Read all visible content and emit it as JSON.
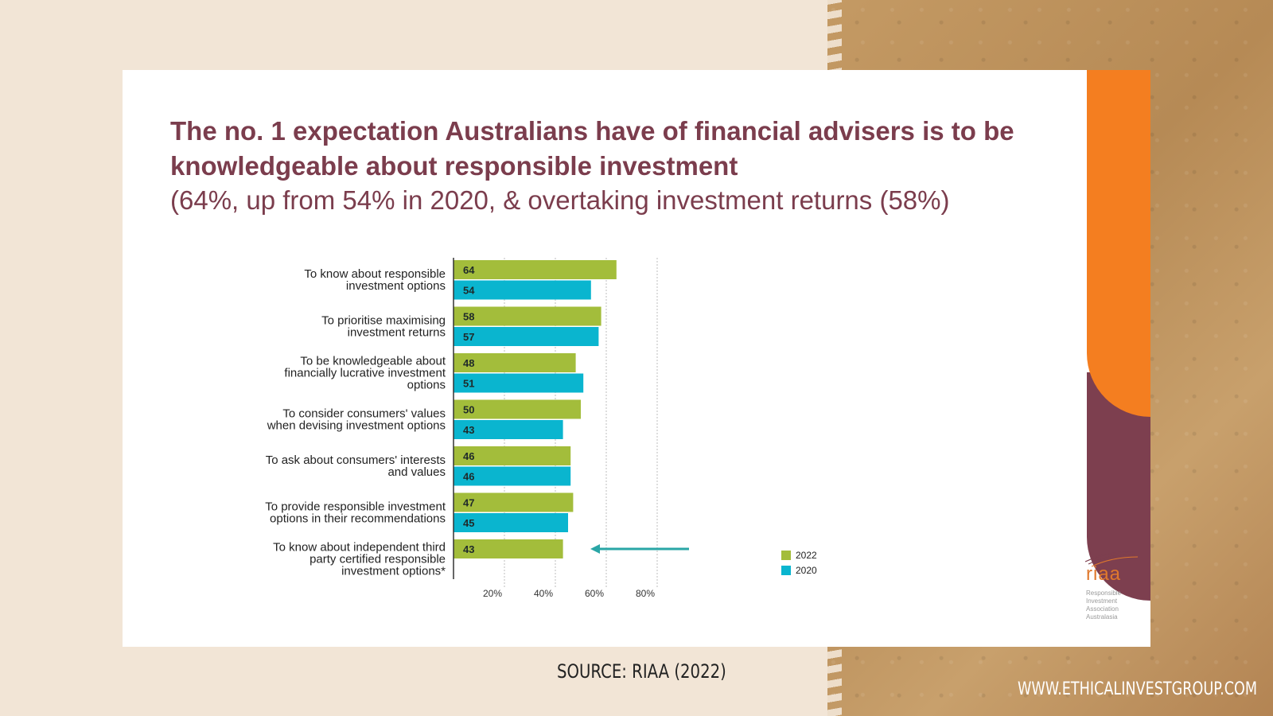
{
  "title": "The no. 1 expectation Australians have of financial advisers is to be knowledgeable about responsible investment",
  "subtitle": "(64%, up from 54% in 2020, & overtaking investment returns (58%)",
  "source": "SOURCE: RIAA (2022)",
  "website": "WWW.ETHICALINVESTGROUP.COM",
  "logo": {
    "word": "riaa",
    "subtext": "Responsible Investment Association Australasia"
  },
  "colors": {
    "title": "#7b3d4d",
    "series_2022": "#a3bd3b",
    "series_2020": "#0ab5cf",
    "accent_orange": "#f47e20",
    "accent_plum": "#7d3f4f",
    "arrow": "#2aa6a6"
  },
  "chart_data": {
    "type": "bar",
    "orientation": "horizontal",
    "categories": [
      [
        "To know about responsible",
        "investment options"
      ],
      [
        "To prioritise maximising",
        "investment returns"
      ],
      [
        "To be knowledgeable about",
        "financially lucrative investment",
        "options"
      ],
      [
        "To consider consumers' values",
        "when devising investment options"
      ],
      [
        "To ask about consumers' interests",
        "and values"
      ],
      [
        "To provide responsible investment",
        "options in their recommendations"
      ],
      [
        "To know about independent third",
        "party certified responsible",
        "investment options*"
      ]
    ],
    "series": [
      {
        "name": "2022",
        "values": [
          64,
          58,
          48,
          50,
          46,
          47,
          43
        ]
      },
      {
        "name": "2020",
        "values": [
          54,
          57,
          51,
          43,
          46,
          45,
          null
        ]
      }
    ],
    "xlim": [
      0,
      80
    ],
    "xticks": [
      "20%",
      "40%",
      "60%",
      "80%"
    ],
    "grid": true,
    "legend": "bottom-right",
    "annotation": "arrow pointing to last category"
  }
}
